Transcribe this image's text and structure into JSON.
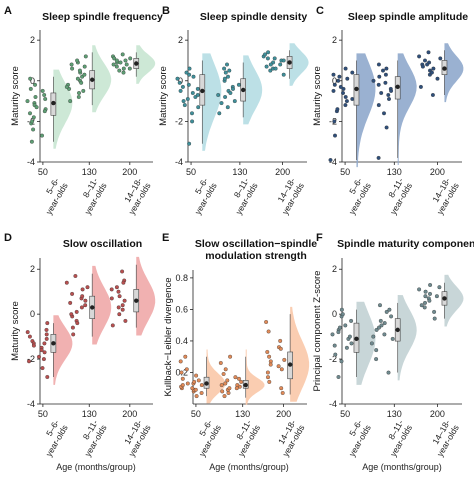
{
  "chart_data": [
    {
      "panel": "A",
      "type": "scatter",
      "title": "Sleep spindle frequency",
      "ylabel": "Maturity score",
      "xlabel": "",
      "ylim": [
        -4,
        2.5
      ],
      "yticks": [
        -4,
        -2,
        0,
        2
      ],
      "xlim": [
        45,
        240
      ],
      "xticks": [
        50,
        130,
        200
      ],
      "group_labels": [
        [
          "5–6-",
          "year-olds"
        ],
        [
          "8–11-",
          "year-olds"
        ],
        [
          "14–18-",
          "year-olds"
        ]
      ],
      "color": "#5e9e74",
      "fill": "#c8e6d2",
      "groups": [
        {
          "x_center": 75,
          "median": -1.1,
          "q1": -1.7,
          "q3": -0.6,
          "low": -3.0,
          "high": 0.2,
          "points": [
            -0.2,
            -0.5,
            -0.8,
            -1.0,
            -1.1,
            -1.2,
            -1.4,
            -1.6,
            -1.8,
            -2.1,
            -2.4,
            -2.7,
            -3.0,
            -0.9,
            -1.3,
            -0.7,
            -1.5,
            -2.0,
            0.1,
            -0.4
          ]
        },
        {
          "x_center": 142,
          "median": 0.05,
          "q1": -0.4,
          "q3": 0.5,
          "low": -1.2,
          "high": 1.4,
          "points": [
            1.2,
            0.9,
            0.6,
            0.4,
            0.2,
            0.0,
            -0.2,
            -0.4,
            -0.6,
            -0.8,
            -1.0,
            0.3,
            0.7,
            -0.1,
            0.5,
            1.0,
            -0.3,
            0.1,
            0.8,
            -0.5
          ]
        },
        {
          "x_center": 218,
          "median": 0.85,
          "q1": 0.6,
          "q3": 1.1,
          "low": 0.2,
          "high": 1.4,
          "points": [
            1.3,
            1.2,
            1.1,
            1.0,
            0.9,
            0.8,
            0.7,
            0.6,
            0.5,
            1.1,
            0.9,
            0.4,
            1.0,
            0.8,
            0.6
          ]
        }
      ]
    },
    {
      "panel": "B",
      "type": "scatter",
      "title": "Sleep spindle density",
      "ylabel": "Maturity score",
      "xlabel": "",
      "ylim": [
        -4,
        2.5
      ],
      "yticks": [
        -4,
        -2,
        0,
        2
      ],
      "xlim": [
        45,
        240
      ],
      "xticks": [
        50,
        130,
        200
      ],
      "group_labels": [
        [
          "5–6-",
          "year-olds"
        ],
        [
          "8–11-",
          "year-olds"
        ],
        [
          "14–18-",
          "year-olds"
        ]
      ],
      "color": "#3f8f9a",
      "fill": "#b5dde3",
      "groups": [
        {
          "x_center": 75,
          "median": -0.5,
          "q1": -1.2,
          "q3": 0.3,
          "low": -3.1,
          "high": 1.0,
          "points": [
            0.6,
            0.3,
            0.1,
            -0.2,
            -0.4,
            -0.6,
            -0.8,
            -1.0,
            -1.3,
            -1.6,
            -2.0,
            -3.1,
            0.2,
            -0.5,
            -0.9,
            0.4,
            -0.1,
            -1.2,
            -0.3,
            -0.7
          ]
        },
        {
          "x_center": 142,
          "median": -0.45,
          "q1": -1.0,
          "q3": 0.1,
          "low": -1.8,
          "high": 0.9,
          "points": [
            0.8,
            0.5,
            0.2,
            0.0,
            -0.3,
            -0.5,
            -0.7,
            -1.0,
            -1.3,
            -1.6,
            0.4,
            -0.2,
            -0.8,
            0.1,
            -0.6,
            -1.1,
            0.6,
            -0.4
          ]
        },
        {
          "x_center": 218,
          "median": 0.9,
          "q1": 0.6,
          "q3": 1.2,
          "low": 0.1,
          "high": 1.5,
          "points": [
            1.4,
            1.2,
            1.1,
            1.0,
            0.9,
            0.8,
            0.7,
            0.6,
            0.5,
            0.3,
            1.3,
            1.0,
            0.8,
            0.6,
            1.1
          ]
        }
      ]
    },
    {
      "panel": "C",
      "type": "scatter",
      "title": "Sleep spindle amplitude",
      "ylabel": "Maturity score",
      "xlabel": "",
      "ylim": [
        -4,
        2.5
      ],
      "yticks": [
        -4,
        -2,
        0,
        2
      ],
      "xlim": [
        45,
        240
      ],
      "xticks": [
        50,
        130,
        200
      ],
      "group_labels": [
        [
          "5–6-",
          "year-olds"
        ],
        [
          "8–11-",
          "year-olds"
        ],
        [
          "14–18-",
          "year-olds"
        ]
      ],
      "color": "#2f4f7a",
      "fill": "#8fa8cc",
      "groups": [
        {
          "x_center": 75,
          "median": -0.4,
          "q1": -1.2,
          "q3": 0.3,
          "low": -3.9,
          "high": 1.0,
          "points": [
            0.6,
            0.3,
            0.1,
            -0.2,
            -0.4,
            -0.6,
            -0.9,
            -1.2,
            -1.5,
            -2.0,
            -2.7,
            -3.9,
            0.2,
            -0.5,
            -0.8,
            0.4,
            -1.0,
            -0.3,
            0.0,
            -1.4
          ]
        },
        {
          "x_center": 142,
          "median": -0.3,
          "q1": -0.9,
          "q3": 0.2,
          "low": -3.8,
          "high": 1.0,
          "points": [
            0.8,
            0.5,
            0.2,
            0.0,
            -0.2,
            -0.4,
            -0.6,
            -0.9,
            -1.2,
            -1.6,
            -2.3,
            -3.8,
            0.3,
            -0.1,
            -0.7,
            0.6,
            -0.5
          ]
        },
        {
          "x_center": 218,
          "median": 0.6,
          "q1": 0.3,
          "q3": 1.0,
          "low": -0.7,
          "high": 1.5,
          "points": [
            1.4,
            1.2,
            1.0,
            0.9,
            0.8,
            0.7,
            0.6,
            0.5,
            0.3,
            0.1,
            -0.3,
            -0.7,
            1.1,
            0.8,
            0.4
          ]
        }
      ]
    },
    {
      "panel": "D",
      "type": "scatter",
      "title": "Slow oscillation",
      "ylabel": "Maturity score",
      "xlabel": "",
      "ylim": [
        -4,
        2.5
      ],
      "yticks": [
        -4,
        -2,
        0,
        2
      ],
      "xlim": [
        45,
        240
      ],
      "xticks": [
        50,
        130,
        200
      ],
      "group_labels": [
        [
          "5–6-",
          "year-olds"
        ],
        [
          "8–11-",
          "year-olds"
        ],
        [
          "14–18-",
          "year-olds"
        ]
      ],
      "color": "#b85050",
      "fill": "#f0a8a8",
      "groups": [
        {
          "x_center": 75,
          "median": -1.3,
          "q1": -1.7,
          "q3": -0.9,
          "low": -2.8,
          "high": -0.4,
          "points": [
            -0.4,
            -0.7,
            -0.9,
            -1.1,
            -1.2,
            -1.3,
            -1.4,
            -1.5,
            -1.7,
            -1.9,
            -2.1,
            -2.4,
            -2.8,
            -1.0,
            -1.6,
            -0.8,
            -1.3,
            -2.0
          ]
        },
        {
          "x_center": 142,
          "median": 0.3,
          "q1": -0.2,
          "q3": 0.8,
          "low": -1.0,
          "high": 1.8,
          "points": [
            1.7,
            1.4,
            1.1,
            0.9,
            0.7,
            0.5,
            0.3,
            0.1,
            -0.1,
            -0.3,
            -0.6,
            -0.9,
            0.8,
            0.4,
            0.0,
            1.2,
            0.6,
            -0.4
          ]
        },
        {
          "x_center": 218,
          "median": 0.6,
          "q1": 0.1,
          "q3": 1.1,
          "low": -0.6,
          "high": 2.2,
          "points": [
            1.9,
            1.5,
            1.2,
            1.0,
            0.8,
            0.6,
            0.4,
            0.2,
            0.0,
            -0.3,
            1.1,
            0.7,
            0.3,
            1.4,
            -0.5
          ]
        }
      ]
    },
    {
      "panel": "E",
      "type": "scatter",
      "title": "Slow oscillation−spindle",
      "subtitle": "modulation strength",
      "ylabel": "Kullback−Leibler divergence",
      "xlabel": "",
      "ylim": [
        0,
        0.85
      ],
      "yticks": [
        0.2,
        0.4,
        0.6,
        0.8
      ],
      "xlim": [
        45,
        240
      ],
      "xticks": [
        50,
        130,
        200
      ],
      "group_labels": [
        [
          "5–6-",
          "year-olds"
        ],
        [
          "8–11-",
          "year-olds"
        ],
        [
          "14–18-",
          "year-olds"
        ]
      ],
      "color": "#e08a58",
      "fill": "#fac8a8",
      "groups": [
        {
          "x_center": 75,
          "median": 0.13,
          "q1": 0.1,
          "q3": 0.17,
          "low": 0.05,
          "high": 0.3,
          "points": [
            0.05,
            0.07,
            0.08,
            0.09,
            0.1,
            0.11,
            0.12,
            0.13,
            0.14,
            0.15,
            0.16,
            0.18,
            0.2,
            0.22,
            0.27,
            0.3,
            0.1,
            0.13,
            0.12,
            0.09
          ]
        },
        {
          "x_center": 142,
          "median": 0.12,
          "q1": 0.1,
          "q3": 0.15,
          "low": 0.04,
          "high": 0.3,
          "points": [
            0.05,
            0.07,
            0.09,
            0.1,
            0.11,
            0.12,
            0.13,
            0.14,
            0.15,
            0.17,
            0.19,
            0.22,
            0.26,
            0.3,
            0.08,
            0.12,
            0.16,
            0.1
          ]
        },
        {
          "x_center": 218,
          "median": 0.25,
          "q1": 0.16,
          "q3": 0.33,
          "low": 0.06,
          "high": 0.57,
          "points": [
            0.52,
            0.46,
            0.4,
            0.36,
            0.33,
            0.3,
            0.27,
            0.25,
            0.22,
            0.2,
            0.17,
            0.14,
            0.1,
            0.07,
            0.28,
            0.35,
            0.24
          ]
        }
      ]
    },
    {
      "panel": "F",
      "type": "scatter",
      "title": "Spindle maturity component",
      "ylabel": "Principal component Z-score",
      "xlabel": "Age (months/group)",
      "ylim": [
        -4,
        2.5
      ],
      "yticks": [
        -4,
        -2,
        0,
        2
      ],
      "xlim": [
        45,
        240
      ],
      "xticks": [
        50,
        130,
        200
      ],
      "group_labels": [
        [
          "5–6-",
          "year-olds"
        ],
        [
          "8–11-",
          "year-olds"
        ],
        [
          "14–18-",
          "year-olds"
        ]
      ],
      "color": "#6f8a8f",
      "fill": "#c2d1d4",
      "groups": [
        {
          "x_center": 75,
          "median": -1.1,
          "q1": -1.7,
          "q3": -0.4,
          "low": -2.8,
          "high": 0.2,
          "points": [
            0.2,
            -0.1,
            -0.3,
            -0.5,
            -0.7,
            -0.9,
            -1.1,
            -1.3,
            -1.5,
            -1.8,
            -2.1,
            -2.8,
            -0.6,
            -1.0,
            -1.4,
            0.0,
            -0.8
          ]
        },
        {
          "x_center": 142,
          "median": -0.7,
          "q1": -1.2,
          "q3": -0.2,
          "low": -2.6,
          "high": 0.5,
          "points": [
            0.4,
            0.1,
            -0.1,
            -0.3,
            -0.5,
            -0.7,
            -0.9,
            -1.1,
            -1.3,
            -1.6,
            -2.0,
            -2.6,
            0.2,
            -0.6,
            -1.0,
            -0.4
          ]
        },
        {
          "x_center": 218,
          "median": 0.7,
          "q1": 0.4,
          "q3": 1.0,
          "low": -0.2,
          "high": 1.4,
          "points": [
            1.3,
            1.1,
            1.0,
            0.9,
            0.8,
            0.7,
            0.6,
            0.5,
            0.3,
            0.1,
            -0.2,
            1.2,
            0.8,
            0.4
          ]
        }
      ]
    }
  ]
}
